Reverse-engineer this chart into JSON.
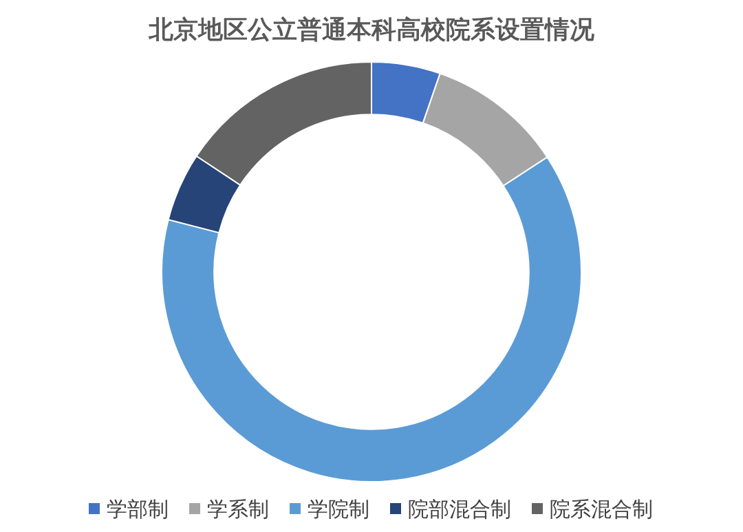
{
  "chart_data": {
    "type": "donut",
    "title": "北京地区公立普通本科高校院系设置情况",
    "categories": [
      "学部制",
      "学系制",
      "学院制",
      "院部混合制",
      "院系混合制"
    ],
    "values": [
      5.3,
      10.5,
      63.2,
      5.3,
      15.7
    ],
    "colors": [
      "#4472c4",
      "#a5a5a5",
      "#5b9bd5",
      "#264478",
      "#636363"
    ],
    "legend": "bottom"
  }
}
